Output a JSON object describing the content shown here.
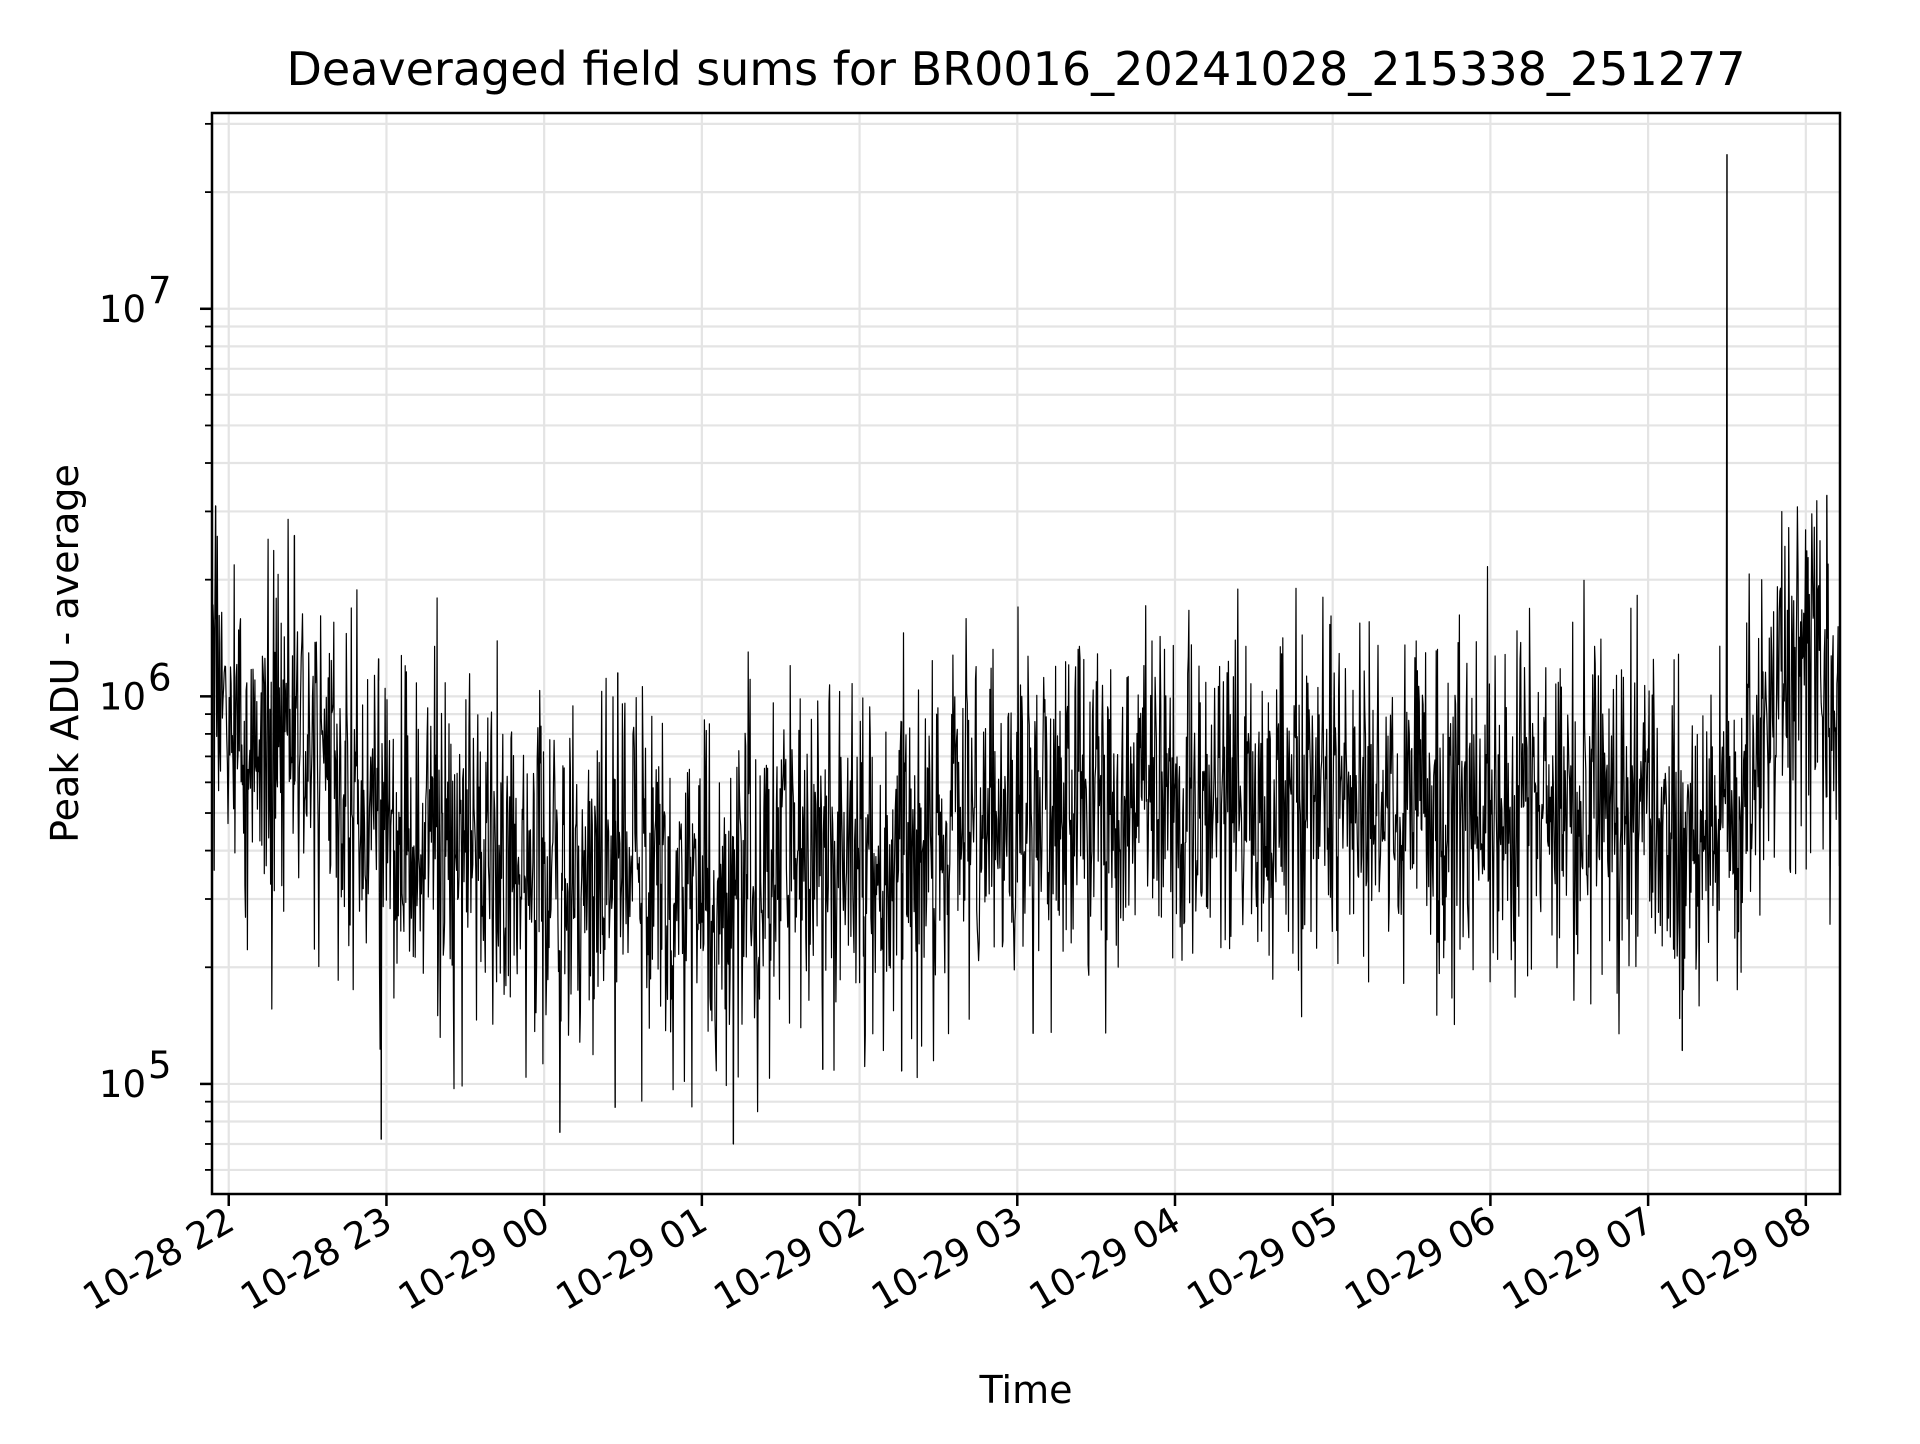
{
  "chart_data": {
    "type": "line",
    "title": "Deaveraged field sums for BR0016_20241028_215338_251277",
    "xlabel": "Time",
    "ylabel": "Peak ADU - average",
    "yscale": "log",
    "grid": "on (major and minor)",
    "line_color": "#000000",
    "xlim": [
      "2024-10-28 21:53:38",
      "2024-10-29 08:13:00"
    ],
    "ylim": [
      52000,
      32000000
    ],
    "x_ticks": [
      {
        "t": "2024-10-28 22:00",
        "label": "10-28 22"
      },
      {
        "t": "2024-10-28 23:00",
        "label": "10-28 23"
      },
      {
        "t": "2024-10-29 00:00",
        "label": "10-29 00"
      },
      {
        "t": "2024-10-29 01:00",
        "label": "10-29 01"
      },
      {
        "t": "2024-10-29 02:00",
        "label": "10-29 02"
      },
      {
        "t": "2024-10-29 03:00",
        "label": "10-29 03"
      },
      {
        "t": "2024-10-29 04:00",
        "label": "10-29 04"
      },
      {
        "t": "2024-10-29 05:00",
        "label": "10-29 05"
      },
      {
        "t": "2024-10-29 06:00",
        "label": "10-29 06"
      },
      {
        "t": "2024-10-29 07:00",
        "label": "10-29 07"
      },
      {
        "t": "2024-10-29 08:00",
        "label": "10-29 08"
      }
    ],
    "y_ticks": [
      {
        "value": 100000,
        "base": "10",
        "exp": "5"
      },
      {
        "value": 1000000,
        "base": "10",
        "exp": "6"
      },
      {
        "value": 10000000,
        "base": "10",
        "exp": "7"
      }
    ],
    "baseline": {
      "x": [
        "2024-10-28 21:54",
        "2024-10-28 22:05",
        "2024-10-28 22:15",
        "2024-10-28 22:25",
        "2024-10-28 22:35",
        "2024-10-28 22:45",
        "2024-10-28 23:00",
        "2024-10-28 23:30",
        "2024-10-29 00:00",
        "2024-10-29 00:30",
        "2024-10-29 01:00",
        "2024-10-29 01:30",
        "2024-10-29 02:00",
        "2024-10-29 02:30",
        "2024-10-29 03:00",
        "2024-10-29 03:30",
        "2024-10-29 04:00",
        "2024-10-29 04:30",
        "2024-10-29 05:00",
        "2024-10-29 05:30",
        "2024-10-29 06:00",
        "2024-10-29 06:30",
        "2024-10-29 07:00",
        "2024-10-29 07:20",
        "2024-10-29 07:35",
        "2024-10-29 07:45",
        "2024-10-29 07:55",
        "2024-10-29 08:05",
        "2024-10-29 08:13"
      ],
      "y": [
        1100000,
        800000,
        750000,
        900000,
        700000,
        500000,
        450000,
        430000,
        350000,
        360000,
        320000,
        370000,
        400000,
        420000,
        480000,
        530000,
        570000,
        580000,
        560000,
        520000,
        540000,
        530000,
        480000,
        420000,
        550000,
        900000,
        1200000,
        1100000,
        1000000
      ],
      "noise_decades": 0.22
    },
    "spikes": {
      "up": [
        {
          "t": "2024-10-29 07:30",
          "y": 25000000
        },
        {
          "t": "2024-10-29 08:08",
          "y": 3300000
        },
        {
          "t": "2024-10-28 21:55",
          "y": 3100000
        },
        {
          "t": "2024-10-28 22:25",
          "y": 2600000
        },
        {
          "t": "2024-10-28 22:57",
          "y": 1250000
        },
        {
          "t": "2024-10-29 00:28",
          "y": 1150000
        }
      ],
      "down": [
        {
          "t": "2024-10-28 22:58",
          "y": 72000
        },
        {
          "t": "2024-10-29 00:06",
          "y": 75000
        },
        {
          "t": "2024-10-29 00:27",
          "y": 87000
        },
        {
          "t": "2024-10-29 01:12",
          "y": 70000
        },
        {
          "t": "2024-10-29 01:46",
          "y": 109000
        },
        {
          "t": "2024-10-29 02:16",
          "y": 108000
        },
        {
          "t": "2024-10-29 03:06",
          "y": 135000
        },
        {
          "t": "2024-10-29 07:13",
          "y": 122000
        }
      ]
    }
  }
}
